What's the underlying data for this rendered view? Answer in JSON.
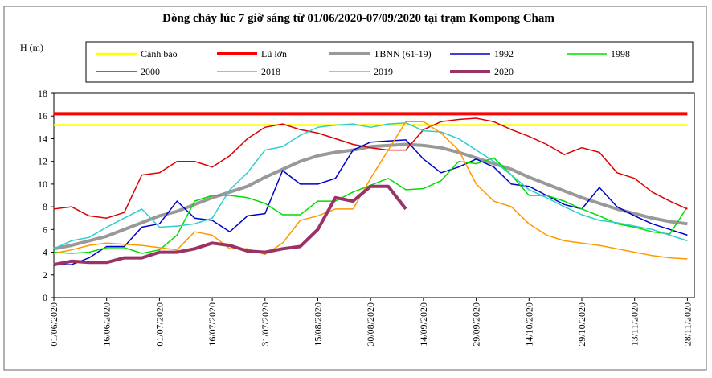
{
  "chart_data": {
    "type": "line",
    "title": "Dòng chảy lúc 7 giờ sáng từ 01/06/2020-07/09/2020 tại trạm Kompong Cham",
    "y_label": "H (m)",
    "categories": [
      "01/06/2020",
      null,
      null,
      "16/06/2020",
      null,
      null,
      "01/07/2020",
      null,
      null,
      "16/07/2020",
      null,
      null,
      "31/07/2020",
      null,
      null,
      "15/08/2020",
      null,
      null,
      "30/08/2020",
      null,
      null,
      "14/09/2020",
      null,
      null,
      "29/09/2020",
      null,
      null,
      "14/10/2020",
      null,
      null,
      "29/10/2020",
      null,
      null,
      "13/11/2020",
      null,
      null,
      "28/11/2020"
    ],
    "ylim": [
      0,
      18
    ],
    "yticks": [
      0,
      2,
      4,
      6,
      8,
      10,
      12,
      14,
      16,
      18
    ],
    "series": [
      {
        "name": "Cảnh báo",
        "color": "#ffff00",
        "line_width": 2.5,
        "values": [
          15.2,
          15.2,
          15.2,
          15.2,
          15.2,
          15.2,
          15.2,
          15.2,
          15.2,
          15.2,
          15.2,
          15.2,
          15.2,
          15.2,
          15.2,
          15.2,
          15.2,
          15.2,
          15.2,
          15.2,
          15.2,
          15.2,
          15.2,
          15.2,
          15.2,
          15.2,
          15.2,
          15.2,
          15.2,
          15.2,
          15.2,
          15.2,
          15.2,
          15.2,
          15.2,
          15.2,
          15.2
        ]
      },
      {
        "name": "Lũ lớn",
        "color": "#ff0000",
        "line_width": 4,
        "values": [
          16.2,
          16.2,
          16.2,
          16.2,
          16.2,
          16.2,
          16.2,
          16.2,
          16.2,
          16.2,
          16.2,
          16.2,
          16.2,
          16.2,
          16.2,
          16.2,
          16.2,
          16.2,
          16.2,
          16.2,
          16.2,
          16.2,
          16.2,
          16.2,
          16.2,
          16.2,
          16.2,
          16.2,
          16.2,
          16.2,
          16.2,
          16.2,
          16.2,
          16.2,
          16.2,
          16.2,
          16.2
        ]
      },
      {
        "name": "TBNN (61-19)",
        "color": "#999999",
        "line_width": 4,
        "values": [
          4.3,
          4.6,
          5.0,
          5.4,
          6.0,
          6.6,
          7.2,
          7.6,
          8.2,
          8.8,
          9.3,
          9.8,
          10.6,
          11.3,
          12.0,
          12.5,
          12.8,
          13.0,
          13.3,
          13.4,
          13.5,
          13.4,
          13.2,
          12.8,
          12.3,
          11.8,
          11.3,
          10.6,
          10.0,
          9.4,
          8.8,
          8.3,
          7.8,
          7.4,
          7.0,
          6.7,
          6.5
        ]
      },
      {
        "name": "1992",
        "color": "#0000cc",
        "line_width": 1.5,
        "values": [
          2.9,
          2.9,
          3.5,
          4.5,
          4.5,
          6.2,
          6.5,
          8.5,
          7.0,
          6.8,
          5.8,
          7.2,
          7.4,
          11.2,
          10.0,
          10.0,
          10.5,
          13.0,
          13.7,
          13.8,
          13.9,
          12.2,
          11.0,
          11.5,
          12.2,
          11.5,
          10.0,
          9.8,
          9.0,
          8.2,
          7.8,
          9.7,
          8.0,
          7.2,
          6.5,
          6.0,
          5.5
        ]
      },
      {
        "name": "1998",
        "color": "#00dd00",
        "line_width": 1.5,
        "values": [
          4.0,
          3.9,
          4.0,
          4.4,
          4.4,
          3.9,
          4.2,
          5.5,
          8.5,
          9.0,
          9.0,
          8.8,
          8.3,
          7.3,
          7.3,
          8.5,
          8.5,
          9.3,
          9.9,
          10.5,
          9.5,
          9.6,
          10.3,
          12.0,
          11.8,
          12.3,
          10.8,
          9.0,
          9.0,
          8.5,
          7.8,
          7.2,
          6.5,
          6.2,
          5.8,
          5.6,
          8.0
        ]
      },
      {
        "name": "2000",
        "color": "#dd0000",
        "line_width": 1.5,
        "values": [
          7.8,
          8.0,
          7.2,
          7.0,
          7.5,
          10.8,
          11.0,
          12.0,
          12.0,
          11.5,
          12.5,
          14.0,
          15.0,
          15.3,
          14.8,
          14.5,
          14.0,
          13.5,
          13.2,
          13.0,
          13.0,
          14.8,
          15.5,
          15.7,
          15.8,
          15.5,
          14.8,
          14.2,
          13.5,
          12.6,
          13.2,
          12.8,
          11.0,
          10.5,
          9.3,
          8.5,
          7.8
        ]
      },
      {
        "name": "2018",
        "color": "#33cccc",
        "line_width": 1.5,
        "values": [
          4.3,
          5.0,
          5.3,
          6.2,
          7.0,
          7.8,
          6.2,
          6.3,
          6.5,
          7.0,
          9.5,
          11.0,
          13.0,
          13.3,
          14.3,
          15.0,
          15.2,
          15.3,
          15.0,
          15.3,
          15.4,
          14.7,
          14.6,
          14.0,
          13.0,
          12.0,
          10.8,
          9.5,
          8.8,
          8.0,
          7.3,
          6.8,
          6.6,
          6.3,
          6.0,
          5.5,
          5.0
        ]
      },
      {
        "name": "2019",
        "color": "#ff9900",
        "line_width": 1.5,
        "values": [
          3.9,
          4.2,
          4.6,
          4.8,
          4.7,
          4.6,
          4.4,
          4.2,
          5.8,
          5.5,
          4.3,
          4.3,
          3.8,
          4.8,
          6.8,
          7.2,
          7.8,
          7.8,
          10.5,
          13.0,
          15.5,
          15.5,
          14.5,
          13.0,
          10.0,
          8.5,
          8.0,
          6.5,
          5.5,
          5.0,
          4.8,
          4.6,
          4.3,
          4.0,
          3.7,
          3.5,
          3.4
        ]
      },
      {
        "name": "2020",
        "color": "#993366",
        "line_width": 4,
        "values": [
          2.9,
          3.2,
          3.1,
          3.1,
          3.5,
          3.5,
          4.0,
          4.0,
          4.3,
          4.8,
          4.6,
          4.1,
          4.0,
          4.3,
          4.5,
          6.0,
          8.8,
          8.5,
          9.8,
          9.8,
          7.8,
          null,
          null,
          null,
          null,
          null,
          null,
          null,
          null,
          null,
          null,
          null,
          null,
          null,
          null,
          null,
          null
        ]
      }
    ]
  }
}
